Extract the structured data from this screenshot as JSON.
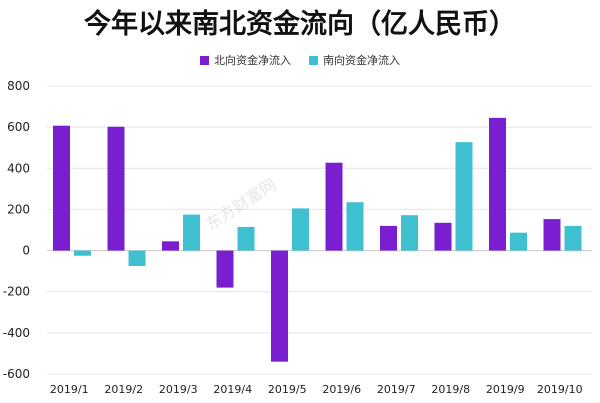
{
  "chart_data": {
    "type": "bar",
    "title": "今年以来南北资金流向（亿人民币）",
    "categories": [
      "2019/1",
      "2019/2",
      "2019/3",
      "2019/4",
      "2019/5",
      "2019/6",
      "2019/7",
      "2019/8",
      "2019/9",
      "2019/10"
    ],
    "series": [
      {
        "name": "北向资金净流入",
        "color": "#7a1fd0",
        "values": [
          607,
          602,
          45,
          -180,
          -540,
          427,
          120,
          135,
          645,
          153
        ]
      },
      {
        "name": "南向资金净流入",
        "color": "#3ec0d0",
        "values": [
          -25,
          -75,
          175,
          115,
          205,
          235,
          172,
          527,
          87,
          120
        ]
      }
    ],
    "yticks": [
      800,
      600,
      400,
      200,
      0,
      -200,
      -400,
      -600
    ],
    "ylim": [
      -600,
      800
    ],
    "grid": true,
    "legend_position": "top-center",
    "xlabel": "",
    "ylabel": ""
  },
  "watermark": "东方财富网"
}
